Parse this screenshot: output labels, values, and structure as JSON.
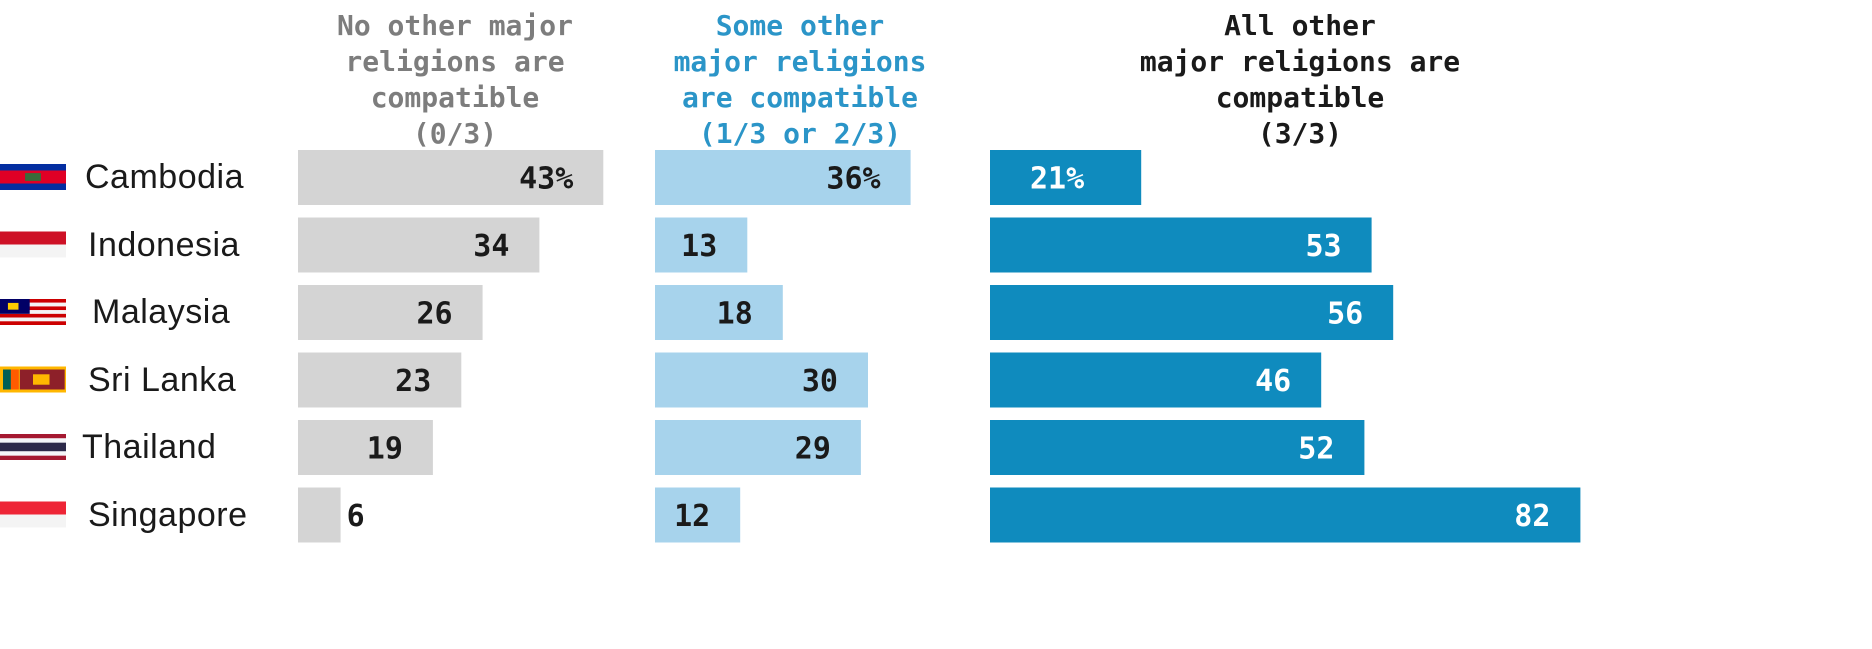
{
  "chart_data": {
    "type": "bar",
    "orientation": "horizontal",
    "categories": [
      "Cambodia",
      "Indonesia",
      "Malaysia",
      "Sri Lanka",
      "Thailand",
      "Singapore"
    ],
    "series": [
      {
        "name": "No other major religions are compatible (0/3)",
        "header_lines": [
          "No other major",
          "religions are",
          "compatible",
          "(0/3)"
        ],
        "values": [
          43,
          34,
          26,
          23,
          19,
          6
        ],
        "labels": [
          "43%",
          "34",
          "26",
          "23",
          "19",
          "6"
        ],
        "color": "#d4d4d4",
        "header_color": "#7d7d7d",
        "label_color": "#1a1a1a"
      },
      {
        "name": "Some other major religions are compatible (1/3 or 2/3)",
        "header_lines": [
          "Some other",
          "major religions",
          "are compatible",
          "(1/3 or 2/3)"
        ],
        "values": [
          36,
          13,
          18,
          30,
          29,
          12
        ],
        "labels": [
          "36%",
          "13",
          "18",
          "30",
          "29",
          "12"
        ],
        "color": "#a7d3ec",
        "header_color": "#2b95c8",
        "label_color": "#1a1a1a"
      },
      {
        "name": "All other major religions are compatible (3/3)",
        "header_lines": [
          "All other",
          "major religions are",
          "compatible",
          "(3/3)"
        ],
        "values": [
          21,
          53,
          56,
          46,
          52,
          82
        ],
        "labels": [
          "21%",
          "53",
          "56",
          "46",
          "52",
          "82"
        ],
        "color": "#0f8bbe",
        "header_color": "#1a1a1a",
        "label_color": "#ffffff"
      }
    ],
    "flag_icons": [
      "cambodia-flag-icon",
      "indonesia-flag-icon",
      "malaysia-flag-icon",
      "sri-lanka-flag-icon",
      "thailand-flag-icon",
      "singapore-flag-icon"
    ]
  }
}
